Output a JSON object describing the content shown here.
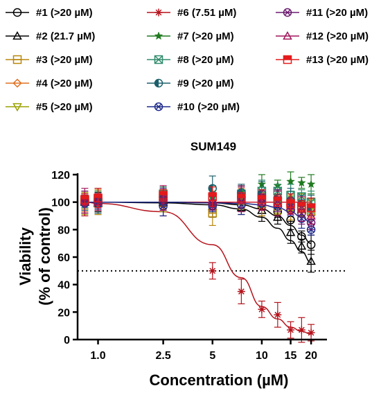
{
  "chart_data": {
    "type": "scatter",
    "title": "SUM149",
    "xlabel": "Concentration (µM)",
    "ylabel_line1": "Viability",
    "ylabel_line2": "(% of control)",
    "x_scale": "log",
    "xlim": [
      0.75,
      25
    ],
    "ylim": [
      0,
      120
    ],
    "x_ticks": [
      1.0,
      2.5,
      5,
      10,
      15,
      20
    ],
    "x_tick_labels": [
      "1.0",
      "2.5",
      "5",
      "10",
      "15",
      "20"
    ],
    "y_ticks": [
      0,
      20,
      40,
      60,
      80,
      100,
      120
    ],
    "y_tick_labels": [
      "0",
      "20",
      "40",
      "60",
      "80",
      "100",
      "120"
    ],
    "reference_line": {
      "y": 50,
      "style": "dotted"
    },
    "x": [
      0.83,
      1.0,
      2.5,
      5,
      7.5,
      10,
      12.5,
      15,
      17.5,
      20
    ],
    "series": [
      {
        "name": "#1 (>20 µM)",
        "marker": "circle",
        "color": "#000000",
        "values": [
          100,
          100,
          99,
          99,
          98,
          97,
          93,
          87,
          75,
          69
        ],
        "curve": [
          100,
          100,
          100,
          99.5,
          98,
          95,
          90,
          83,
          76,
          70
        ]
      },
      {
        "name": "#2 (21.7 µM)",
        "marker": "triangle",
        "color": "#000000",
        "values": [
          100,
          99,
          100,
          97,
          96,
          94,
          89,
          78,
          68,
          57
        ],
        "curve": [
          100,
          100,
          99.5,
          98,
          95,
          89,
          81,
          72,
          64,
          56
        ]
      },
      {
        "name": "#3 (>20 µM)",
        "marker": "square",
        "color": "#b8860b",
        "values": [
          101,
          100,
          103,
          92,
          101,
          99,
          97,
          96,
          95,
          93
        ]
      },
      {
        "name": "#4 (>20 µM)",
        "marker": "diamond",
        "color": "#e07020",
        "values": [
          100,
          101,
          102,
          100,
          103,
          101,
          99,
          98,
          96,
          94
        ]
      },
      {
        "name": "#5 (>20 µM)",
        "marker": "triangle-down",
        "color": "#9aa000",
        "values": [
          99,
          100,
          101,
          103,
          104,
          102,
          100,
          99,
          98,
          96
        ]
      },
      {
        "name": "#6 (7.51 µM)",
        "marker": "star",
        "color": "#b5121b",
        "values": [
          99,
          100,
          99,
          50,
          35,
          22,
          18,
          7,
          7,
          5
        ],
        "curve": [
          100,
          99,
          93,
          69,
          45,
          24,
          15,
          9,
          6,
          4
        ]
      },
      {
        "name": "#7 (>20 µM)",
        "marker": "filled-star",
        "color": "#1f7a1f",
        "values": [
          102,
          101,
          107,
          105,
          108,
          113,
          112,
          115,
          114,
          113
        ]
      },
      {
        "name": "#8 (>20 µM)",
        "marker": "square-x",
        "color": "#2e8b6b",
        "values": [
          101,
          102,
          106,
          104,
          106,
          108,
          108,
          105,
          104,
          100
        ]
      },
      {
        "name": "#9 (>20 µM)",
        "marker": "half-circle",
        "color": "#1c5f6b",
        "values": [
          100,
          101,
          104,
          110,
          107,
          106,
          103,
          101,
          99,
          96
        ]
      },
      {
        "name": "#10 (>20 µM)",
        "marker": "circle-x",
        "color": "#1e2a8a",
        "values": [
          99,
          99,
          97,
          97,
          98,
          99,
          97,
          94,
          88,
          80
        ],
        "curve": [
          100,
          100,
          100,
          99.5,
          99,
          98,
          96,
          93,
          89,
          85
        ]
      },
      {
        "name": "#11 (>20 µM)",
        "marker": "circle-x",
        "color": "#6a1b6e",
        "values": [
          100,
          101,
          102,
          99,
          104,
          103,
          101,
          98,
          92,
          85
        ]
      },
      {
        "name": "#12 (>20 µM)",
        "marker": "triangle",
        "color": "#a0145a",
        "values": [
          101,
          100,
          103,
          101,
          102,
          100,
          99,
          97,
          95,
          90
        ]
      },
      {
        "name": "#13 (>20 µM)",
        "marker": "square-half",
        "color": "#e41a1c",
        "values": [
          102,
          103,
          105,
          104,
          103,
          102,
          101,
          99,
          97,
          96
        ]
      }
    ]
  }
}
